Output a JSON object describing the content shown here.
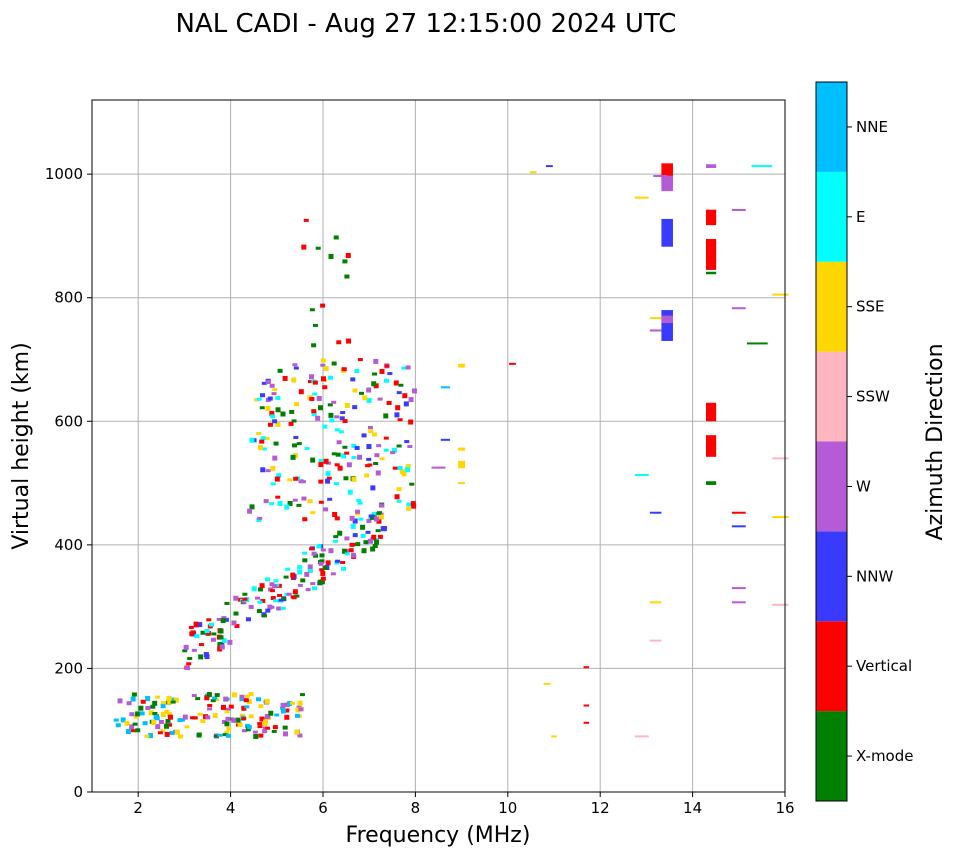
{
  "chart_data": {
    "type": "scatter",
    "title": "NAL CADI - Aug 27 12:15:00 2024 UTC",
    "xlabel": "Frequency (MHz)",
    "ylabel": "Virtual height (km)",
    "xlim": [
      1,
      16
    ],
    "ylim": [
      0,
      1120
    ],
    "xticks": [
      2,
      4,
      6,
      8,
      10,
      12,
      14,
      16
    ],
    "yticks": [
      0,
      200,
      400,
      600,
      800,
      1000
    ],
    "grid": true,
    "colorbar": {
      "label": "Azimuth Direction",
      "categories": [
        {
          "name": "X-mode",
          "color": "#008000"
        },
        {
          "name": "Vertical",
          "color": "#ff0000"
        },
        {
          "name": "NNW",
          "color": "#3a3aff"
        },
        {
          "name": "W",
          "color": "#b65bd6"
        },
        {
          "name": "SSW",
          "color": "#ffb6c1"
        },
        {
          "name": "SSE",
          "color": "#ffd700"
        },
        {
          "name": "E",
          "color": "#00ffff"
        },
        {
          "name": "NNE",
          "color": "#00bfff"
        }
      ]
    },
    "clusters": [
      {
        "name": "E-layer trace",
        "f": [
          1.5,
          5.6
        ],
        "h": [
          90,
          160
        ],
        "dir": [
          "Vertical",
          "NNE",
          "W",
          "SSE",
          "X-mode"
        ],
        "n": 170
      },
      {
        "name": "F-layer lower trace",
        "f": [
          3.0,
          7.4
        ],
        "h": [
          230,
          440
        ],
        "dir": [
          "Vertical",
          "NNW",
          "X-mode",
          "E",
          "W"
        ],
        "n": 180
      },
      {
        "name": "F-layer spread cloud",
        "f": [
          4.4,
          8.0
        ],
        "h": [
          440,
          700
        ],
        "dir": [
          "Vertical",
          "E",
          "NNW",
          "X-mode",
          "W",
          "SSE"
        ],
        "n": 220
      },
      {
        "name": "Upper scatter",
        "f": [
          5.5,
          6.6
        ],
        "h": [
          700,
          930
        ],
        "dir": [
          "Vertical",
          "X-mode"
        ],
        "n": 14
      }
    ],
    "points": [
      {
        "f": 13.45,
        "h": 1000,
        "dir": "Vertical",
        "w": 0.25,
        "hh": 35
      },
      {
        "f": 13.45,
        "h": 985,
        "dir": "W",
        "w": 0.25,
        "hh": 25
      },
      {
        "f": 13.45,
        "h": 905,
        "dir": "NNW",
        "w": 0.25,
        "hh": 45
      },
      {
        "f": 13.45,
        "h": 755,
        "dir": "NNW",
        "w": 0.25,
        "hh": 50
      },
      {
        "f": 13.45,
        "h": 765,
        "dir": "W",
        "w": 0.25,
        "hh": 12
      },
      {
        "f": 14.4,
        "h": 930,
        "dir": "Vertical",
        "w": 0.22,
        "hh": 25
      },
      {
        "f": 14.4,
        "h": 870,
        "dir": "Vertical",
        "w": 0.22,
        "hh": 50
      },
      {
        "f": 14.4,
        "h": 615,
        "dir": "Vertical",
        "w": 0.22,
        "hh": 30
      },
      {
        "f": 14.4,
        "h": 560,
        "dir": "Vertical",
        "w": 0.22,
        "hh": 35
      },
      {
        "f": 14.4,
        "h": 500,
        "dir": "X-mode",
        "w": 0.22,
        "hh": 6
      },
      {
        "f": 14.4,
        "h": 1013,
        "dir": "W",
        "w": 0.22,
        "hh": 6
      },
      {
        "f": 14.4,
        "h": 840,
        "dir": "X-mode",
        "w": 0.22,
        "hh": 4
      },
      {
        "f": 15.5,
        "h": 1013,
        "dir": "E",
        "w": 0.45,
        "hh": 3
      },
      {
        "f": 15.0,
        "h": 942,
        "dir": "W",
        "w": 0.3,
        "hh": 3
      },
      {
        "f": 15.0,
        "h": 783,
        "dir": "W",
        "w": 0.3,
        "hh": 3
      },
      {
        "f": 15.9,
        "h": 805,
        "dir": "SSE",
        "w": 0.35,
        "hh": 3
      },
      {
        "f": 15.4,
        "h": 726,
        "dir": "X-mode",
        "w": 0.45,
        "hh": 2
      },
      {
        "f": 15.9,
        "h": 540,
        "dir": "SSW",
        "w": 0.35,
        "hh": 3
      },
      {
        "f": 15.9,
        "h": 445,
        "dir": "SSE",
        "w": 0.35,
        "hh": 3
      },
      {
        "f": 15.0,
        "h": 452,
        "dir": "Vertical",
        "w": 0.3,
        "hh": 2
      },
      {
        "f": 15.0,
        "h": 430,
        "dir": "NNW",
        "w": 0.3,
        "hh": 3
      },
      {
        "f": 15.0,
        "h": 330,
        "dir": "W",
        "w": 0.3,
        "hh": 2
      },
      {
        "f": 15.0,
        "h": 307,
        "dir": "W",
        "w": 0.3,
        "hh": 3
      },
      {
        "f": 15.9,
        "h": 303,
        "dir": "SSW",
        "w": 0.35,
        "hh": 3
      },
      {
        "f": 13.3,
        "h": 997,
        "dir": "W",
        "w": 0.3,
        "hh": 2
      },
      {
        "f": 12.9,
        "h": 962,
        "dir": "SSE",
        "w": 0.3,
        "hh": 3
      },
      {
        "f": 13.2,
        "h": 767,
        "dir": "SSE",
        "w": 0.25,
        "hh": 3
      },
      {
        "f": 13.2,
        "h": 747,
        "dir": "W",
        "w": 0.25,
        "hh": 2
      },
      {
        "f": 12.9,
        "h": 513,
        "dir": "E",
        "w": 0.3,
        "hh": 3
      },
      {
        "f": 13.2,
        "h": 452,
        "dir": "NNW",
        "w": 0.25,
        "hh": 2
      },
      {
        "f": 13.2,
        "h": 307,
        "dir": "SSE",
        "w": 0.25,
        "hh": 3
      },
      {
        "f": 13.2,
        "h": 245,
        "dir": "SSW",
        "w": 0.25,
        "hh": 2
      },
      {
        "f": 12.9,
        "h": 90,
        "dir": "SSW",
        "w": 0.3,
        "hh": 2
      },
      {
        "f": 11.7,
        "h": 202,
        "dir": "Vertical",
        "w": 0.12,
        "hh": 3
      },
      {
        "f": 11.7,
        "h": 140,
        "dir": "Vertical",
        "w": 0.12,
        "hh": 2
      },
      {
        "f": 11.7,
        "h": 112,
        "dir": "Vertical",
        "w": 0.12,
        "hh": 3
      },
      {
        "f": 11.0,
        "h": 90,
        "dir": "SSE",
        "w": 0.12,
        "hh": 2
      },
      {
        "f": 10.85,
        "h": 175,
        "dir": "SSE",
        "w": 0.15,
        "hh": 3
      },
      {
        "f": 10.1,
        "h": 693,
        "dir": "Vertical",
        "w": 0.15,
        "hh": 3
      },
      {
        "f": 10.9,
        "h": 1013,
        "dir": "NNW",
        "w": 0.15,
        "hh": 3
      },
      {
        "f": 10.55,
        "h": 1003,
        "dir": "SSE",
        "w": 0.15,
        "hh": 3
      },
      {
        "f": 9.0,
        "h": 690,
        "dir": "SSE",
        "w": 0.15,
        "hh": 6
      },
      {
        "f": 9.0,
        "h": 555,
        "dir": "SSE",
        "w": 0.15,
        "hh": 5
      },
      {
        "f": 9.0,
        "h": 530,
        "dir": "SSE",
        "w": 0.15,
        "hh": 12
      },
      {
        "f": 9.0,
        "h": 500,
        "dir": "SSE",
        "w": 0.15,
        "hh": 3
      },
      {
        "f": 8.65,
        "h": 655,
        "dir": "NNE",
        "w": 0.2,
        "hh": 3
      },
      {
        "f": 8.65,
        "h": 570,
        "dir": "NNW",
        "w": 0.2,
        "hh": 3
      },
      {
        "f": 8.5,
        "h": 525,
        "dir": "W",
        "w": 0.3,
        "hh": 3
      }
    ]
  }
}
